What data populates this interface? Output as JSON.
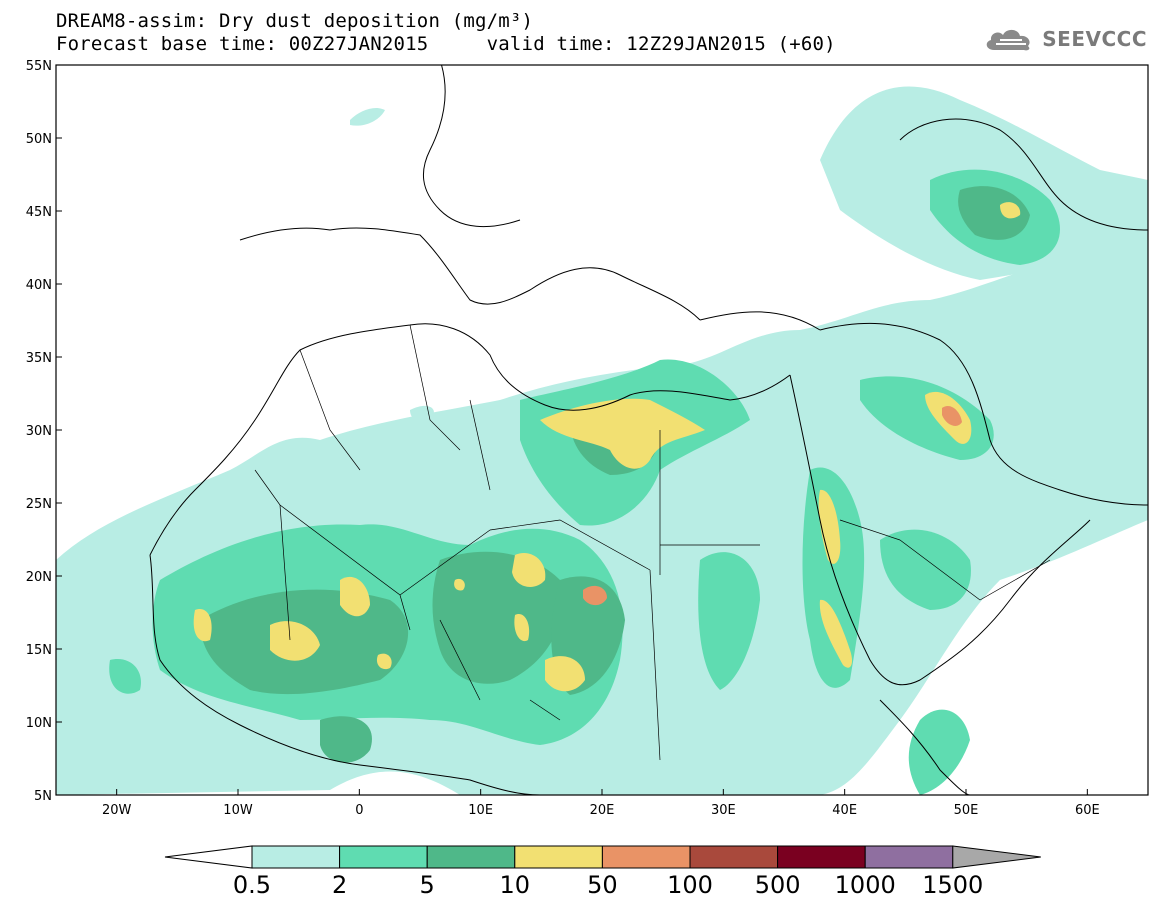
{
  "header": {
    "title_line1": "DREAM8-assim: Dry dust deposition (mg/m³)",
    "title_line2": "Forecast base time: 00Z27JAN2015     valid time: 12Z29JAN2015 (+60)"
  },
  "logo": {
    "text": "SEEVCCC",
    "icon": "cloud-logo-icon"
  },
  "map": {
    "lon_range": [
      -25,
      65
    ],
    "lat_range": [
      5,
      55
    ],
    "lat_ticks": [
      "55N",
      "50N",
      "45N",
      "40N",
      "35N",
      "30N",
      "25N",
      "20N",
      "15N",
      "10N",
      "5N"
    ],
    "lon_ticks": [
      "20W",
      "10W",
      "0",
      "10E",
      "20E",
      "30E",
      "40E",
      "50E",
      "60E"
    ]
  },
  "legend": {
    "labels": [
      "0.5",
      "2",
      "5",
      "10",
      "50",
      "100",
      "500",
      "1000",
      "1500"
    ],
    "colors": [
      "#ffffff",
      "#b8ede4",
      "#5fdcb1",
      "#4fb889",
      "#f2e072",
      "#e99366",
      "#a9493c",
      "#7a0020",
      "#8f6fa0",
      "#a8a8a8"
    ]
  }
}
